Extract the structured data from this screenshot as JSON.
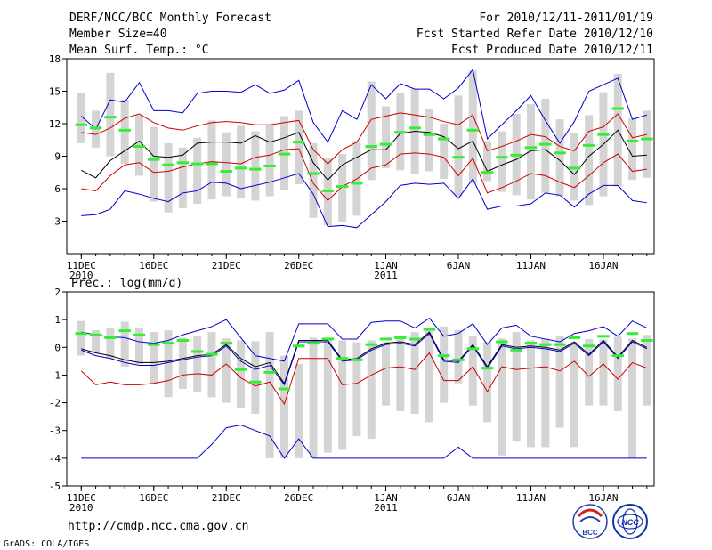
{
  "header": {
    "title": "DERF/NCC/BCC Monthly Forecast",
    "member_size": "Member Size=40",
    "variable": "Mean Surf. Temp.: °C",
    "period": "For 2010/12/11-2011/01/19",
    "started": "Fcst Started Refer Date 2010/12/10",
    "produced": "Fcst Produced Date 2010/12/11"
  },
  "footer": {
    "url": "http://cmdp.ncc.cma.gov.cn",
    "credit": "GrADS: COLA/IGES",
    "logo_left": "BCC",
    "logo_right": "NCC"
  },
  "colors": {
    "box": "#d4d4d4",
    "green": "#33ee33",
    "blue": "#0000cc",
    "red": "#cc0000",
    "mean": "#000000"
  },
  "chart_data": [
    {
      "type": "line",
      "title": "Mean Surf. Temp.: °C",
      "ylim": [
        0,
        18
      ],
      "yticks": [
        3,
        6,
        9,
        12,
        15,
        18
      ],
      "x_tick_labels": [
        {
          "day": 1,
          "label": "11DEC",
          "year": "2010"
        },
        {
          "day": 6,
          "label": "16DEC",
          "year": ""
        },
        {
          "day": 11,
          "label": "21DEC",
          "year": ""
        },
        {
          "day": 16,
          "label": "26DEC",
          "year": ""
        },
        {
          "day": 22,
          "label": "1JAN",
          "year": "2011"
        },
        {
          "day": 27,
          "label": "6JAN",
          "year": ""
        },
        {
          "day": 32,
          "label": "11JAN",
          "year": ""
        },
        {
          "day": 37,
          "label": "16JAN",
          "year": ""
        }
      ],
      "days": 40,
      "box_low": [
        10.2,
        9.8,
        9.0,
        8.3,
        7.2,
        4.8,
        3.8,
        4.2,
        4.6,
        5.0,
        5.3,
        5.1,
        4.9,
        5.3,
        5.9,
        6.4,
        3.3,
        2.6,
        2.9,
        3.5,
        6.8,
        7.9,
        7.7,
        7.4,
        7.6,
        6.9,
        5.3,
        6.5,
        6.7,
        5.7,
        5.4,
        5.0,
        5.6,
        5.3,
        4.9,
        4.5,
        5.3,
        6.2,
        6.8,
        7.0
      ],
      "box_high": [
        14.8,
        13.2,
        16.7,
        14.2,
        12.8,
        11.7,
        10.2,
        9.8,
        10.7,
        12.3,
        11.2,
        11.8,
        11.3,
        11.9,
        12.7,
        13.2,
        10.2,
        8.8,
        9.2,
        10.4,
        15.9,
        13.6,
        14.8,
        15.2,
        13.4,
        12.0,
        14.6,
        16.9,
        10.4,
        11.3,
        12.9,
        13.8,
        14.3,
        12.4,
        11.1,
        12.8,
        14.9,
        16.6,
        12.5,
        13.2
      ],
      "green": [
        11.9,
        11.6,
        12.6,
        11.4,
        9.9,
        8.7,
        8.2,
        8.4,
        8.3,
        8.3,
        7.6,
        7.9,
        7.8,
        8.1,
        9.2,
        10.3,
        7.4,
        5.8,
        6.2,
        6.5,
        9.9,
        10.1,
        11.2,
        11.6,
        11.0,
        10.6,
        8.9,
        11.4,
        7.5,
        8.9,
        9.1,
        9.8,
        10.1,
        9.3,
        7.9,
        10.0,
        11.0,
        13.4,
        10.4,
        10.6
      ],
      "series": [
        {
          "name": "max",
          "color": "blue",
          "values": [
            12.7,
            11.5,
            14.2,
            14.0,
            15.8,
            13.2,
            13.2,
            13.0,
            14.8,
            15.0,
            15.0,
            14.9,
            15.6,
            14.8,
            15.1,
            16.0,
            12.1,
            10.3,
            13.2,
            12.4,
            15.6,
            14.3,
            15.7,
            15.2,
            15.2,
            14.3,
            15.3,
            17.0,
            10.6,
            11.9,
            13.2,
            14.6,
            12.3,
            10.2,
            12.2,
            15.0,
            15.6,
            16.2,
            12.4,
            12.8
          ]
        },
        {
          "name": "upper",
          "color": "red",
          "values": [
            11.2,
            11.0,
            11.6,
            12.5,
            12.9,
            12.1,
            11.6,
            11.4,
            11.8,
            12.1,
            12.2,
            12.1,
            11.9,
            11.9,
            12.1,
            12.3,
            9.6,
            8.3,
            9.6,
            10.3,
            12.4,
            12.7,
            13.0,
            12.8,
            12.6,
            12.2,
            11.9,
            12.8,
            9.5,
            9.9,
            10.4,
            11.0,
            10.8,
            9.9,
            9.5,
            11.3,
            11.7,
            12.9,
            10.7,
            11.0
          ]
        },
        {
          "name": "mean",
          "color": "mean",
          "values": [
            7.7,
            7.0,
            8.6,
            9.5,
            10.4,
            9.0,
            8.9,
            9.1,
            10.2,
            10.3,
            10.3,
            10.2,
            10.9,
            10.3,
            10.7,
            11.2,
            8.4,
            6.8,
            8.2,
            8.9,
            9.6,
            9.6,
            11.1,
            11.3,
            11.2,
            10.8,
            9.7,
            10.4,
            7.6,
            8.2,
            8.7,
            9.5,
            9.6,
            8.6,
            7.3,
            9.0,
            10.1,
            11.4,
            9.0,
            9.1
          ]
        },
        {
          "name": "lower",
          "color": "red",
          "values": [
            6.0,
            5.8,
            7.2,
            8.2,
            8.4,
            7.5,
            7.6,
            8.0,
            8.3,
            8.5,
            8.4,
            8.3,
            8.9,
            9.1,
            9.6,
            9.7,
            6.5,
            4.9,
            6.2,
            6.9,
            7.9,
            8.2,
            9.2,
            9.3,
            9.2,
            8.9,
            7.2,
            8.8,
            5.6,
            6.1,
            6.7,
            7.4,
            7.2,
            6.6,
            6.1,
            7.2,
            8.4,
            9.2,
            7.6,
            7.8
          ]
        },
        {
          "name": "min",
          "color": "blue",
          "values": [
            3.5,
            3.6,
            4.1,
            5.8,
            5.5,
            5.1,
            4.8,
            5.6,
            5.8,
            6.6,
            6.5,
            6.0,
            6.3,
            6.6,
            7.0,
            7.4,
            5.5,
            2.5,
            2.6,
            2.4,
            3.6,
            4.8,
            6.3,
            6.5,
            6.4,
            6.5,
            5.1,
            6.9,
            4.1,
            4.4,
            4.4,
            4.6,
            5.6,
            5.4,
            4.3,
            5.5,
            6.3,
            6.3,
            4.9,
            4.7
          ]
        }
      ]
    },
    {
      "type": "line",
      "title": "Prec.: log(mm/d)",
      "ylim": [
        -5,
        2
      ],
      "yticks": [
        -5,
        -4,
        -3,
        -2,
        -1,
        0,
        1,
        2
      ],
      "x_tick_labels": [
        {
          "day": 1,
          "label": "11DEC",
          "year": "2010"
        },
        {
          "day": 6,
          "label": "16DEC",
          "year": ""
        },
        {
          "day": 11,
          "label": "21DEC",
          "year": ""
        },
        {
          "day": 16,
          "label": "26DEC",
          "year": ""
        },
        {
          "day": 22,
          "label": "1JAN",
          "year": "2011"
        },
        {
          "day": 27,
          "label": "6JAN",
          "year": ""
        },
        {
          "day": 32,
          "label": "11JAN",
          "year": ""
        },
        {
          "day": 37,
          "label": "16JAN",
          "year": ""
        }
      ],
      "days": 40,
      "box_low": [
        -0.3,
        -0.2,
        -0.4,
        -0.7,
        -0.6,
        -1.3,
        -1.8,
        -1.5,
        -1.6,
        -1.8,
        -2.0,
        -2.2,
        -2.4,
        -4.0,
        -4.0,
        -4.0,
        -4.0,
        -3.8,
        -3.7,
        -3.2,
        -3.3,
        -2.1,
        -2.3,
        -2.4,
        -2.7,
        -2.0,
        -1.3,
        -2.1,
        -2.7,
        -3.9,
        -3.4,
        -3.6,
        -3.6,
        -2.9,
        -3.6,
        -2.1,
        -2.1,
        -2.3,
        -4.0,
        -2.1
      ],
      "box_high": [
        0.95,
        0.62,
        0.68,
        0.92,
        0.72,
        0.55,
        0.62,
        0.35,
        0.42,
        0.55,
        0.32,
        0.25,
        0.22,
        0.55,
        -0.3,
        -0.6,
        0.35,
        0.35,
        0.25,
        0.18,
        0.25,
        0.2,
        0.35,
        0.55,
        0.68,
        0.75,
        0.62,
        0.42,
        0.2,
        0.32,
        0.55,
        0.25,
        0.32,
        0.42,
        0.2,
        0.3,
        0.28,
        0.38,
        0.32,
        0.45
      ],
      "green": [
        0.5,
        0.45,
        0.35,
        0.6,
        0.45,
        0.1,
        0.15,
        0.25,
        -0.15,
        -0.25,
        0.15,
        -0.8,
        -1.25,
        -0.9,
        -1.5,
        0.05,
        0.15,
        0.3,
        -0.4,
        -0.45,
        0.1,
        0.3,
        0.35,
        0.3,
        0.65,
        -0.3,
        -0.45,
        -0.05,
        -0.75,
        0.2,
        -0.1,
        0.15,
        0.1,
        0.1,
        0.35,
        0.05,
        0.4,
        -0.3,
        0.5,
        0.25
      ],
      "series": [
        {
          "name": "max",
          "color": "blue",
          "values": [
            0.55,
            0.45,
            0.38,
            0.35,
            0.2,
            0.15,
            0.25,
            0.45,
            0.6,
            0.75,
            1.0,
            0.35,
            -0.3,
            -0.4,
            -0.5,
            0.85,
            0.85,
            0.85,
            0.3,
            0.3,
            0.9,
            0.95,
            0.95,
            0.7,
            1.05,
            0.4,
            0.5,
            0.85,
            0.1,
            0.7,
            0.8,
            0.4,
            0.3,
            0.2,
            0.5,
            0.6,
            0.75,
            0.4,
            0.95,
            0.7
          ]
        },
        {
          "name": "upper",
          "color": "mean",
          "values": [
            -0.05,
            -0.2,
            -0.3,
            -0.45,
            -0.55,
            -0.55,
            -0.5,
            -0.4,
            -0.3,
            -0.25,
            0.1,
            -0.4,
            -0.7,
            -0.55,
            -1.3,
            0.25,
            0.25,
            0.25,
            -0.45,
            -0.4,
            -0.05,
            0.15,
            0.2,
            0.1,
            0.55,
            -0.45,
            -0.5,
            0.1,
            -0.7,
            0.1,
            0.0,
            0.05,
            0.0,
            -0.1,
            0.2,
            -0.25,
            0.25,
            -0.35,
            0.25,
            0.0
          ]
        },
        {
          "name": "mean",
          "color": "blue",
          "values": [
            -0.1,
            -0.3,
            -0.4,
            -0.55,
            -0.65,
            -0.65,
            -0.55,
            -0.45,
            -0.35,
            -0.3,
            0.05,
            -0.5,
            -0.8,
            -0.65,
            -1.35,
            0.2,
            0.2,
            0.2,
            -0.5,
            -0.45,
            -0.1,
            0.1,
            0.15,
            0.05,
            0.5,
            -0.5,
            -0.55,
            0.05,
            -0.75,
            0.05,
            -0.05,
            0.0,
            -0.05,
            -0.15,
            0.15,
            -0.3,
            0.2,
            -0.4,
            0.2,
            -0.05
          ]
        },
        {
          "name": "lower",
          "color": "red",
          "values": [
            -0.85,
            -1.35,
            -1.25,
            -1.35,
            -1.35,
            -1.3,
            -1.2,
            -1.0,
            -0.95,
            -1.0,
            -0.6,
            -1.1,
            -1.4,
            -1.25,
            -2.05,
            -0.4,
            -0.4,
            -0.4,
            -1.35,
            -1.3,
            -1.0,
            -0.75,
            -0.7,
            -0.8,
            -0.2,
            -1.2,
            -1.2,
            -0.7,
            -1.6,
            -0.7,
            -0.8,
            -0.75,
            -0.7,
            -0.85,
            -0.5,
            -1.05,
            -0.6,
            -1.15,
            -0.55,
            -0.75
          ]
        },
        {
          "name": "min",
          "color": "blue",
          "values": [
            -4,
            -4,
            -4,
            -4,
            -4,
            -4,
            -4,
            -4,
            -4,
            -3.5,
            -2.9,
            -2.8,
            -3.0,
            -3.2,
            -4,
            -3.3,
            -4,
            -4,
            -4,
            -4,
            -4,
            -4,
            -4,
            -4,
            -4,
            -4,
            -3.6,
            -4,
            -4,
            -4,
            -4,
            -4,
            -4,
            -4,
            -4,
            -4,
            -4,
            -4,
            -4,
            -4
          ]
        }
      ]
    }
  ]
}
